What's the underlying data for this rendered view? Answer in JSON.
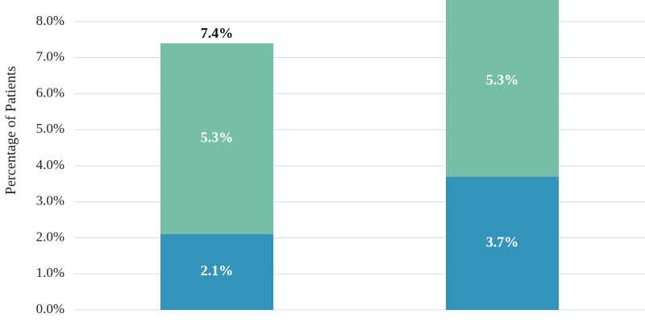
{
  "chart_data": {
    "type": "stacked_bar",
    "y_label": "Percentage of Patients",
    "categories": [
      null,
      null
    ],
    "series": [
      {
        "color": "#3493ba",
        "values": [
          2.1,
          3.7
        ],
        "value_labels": [
          "2.1%",
          "3.7%"
        ]
      },
      {
        "color": "#77bea8",
        "values": [
          5.3,
          5.3
        ],
        "value_labels": [
          "5.3%",
          "5.3%"
        ]
      }
    ],
    "totals": [
      7.4,
      null
    ],
    "total_labels": [
      "7.4%",
      null
    ],
    "ylim": [
      0,
      8.6
    ],
    "yticks": [
      {
        "value": 0,
        "label": "0.0%"
      },
      {
        "value": 1,
        "label": "1.0%"
      },
      {
        "value": 2,
        "label": "2.0%"
      },
      {
        "value": 3,
        "label": "3.0%"
      },
      {
        "value": 4,
        "label": "4.0%"
      },
      {
        "value": 5,
        "label": "5.0%"
      },
      {
        "value": 6,
        "label": "6.0%"
      },
      {
        "value": 7,
        "label": "7.0%"
      },
      {
        "value": 8,
        "label": "8.0%"
      }
    ],
    "grid": true
  }
}
